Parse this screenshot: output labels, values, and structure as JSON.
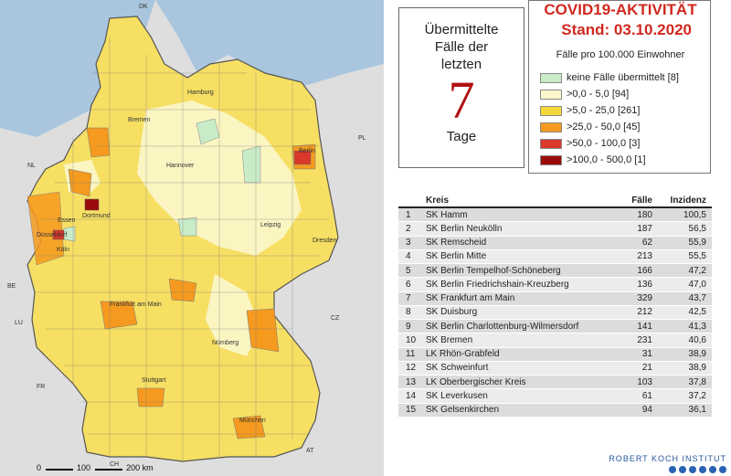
{
  "map": {
    "countries": [
      "DK",
      "NL",
      "BE",
      "LU",
      "FR",
      "PL",
      "CZ",
      "AT",
      "CH"
    ],
    "cities": [
      "Hamburg",
      "Bremen",
      "Berlin",
      "Hannover",
      "Essen",
      "Dortmund",
      "Düsseldorf",
      "Köln",
      "Leipzig",
      "Dresden",
      "Frankfurt am Main",
      "Nürnberg",
      "Stuttgart",
      "München"
    ],
    "scale": {
      "zero": "0",
      "mid": "100",
      "end": "200 km"
    }
  },
  "days_box": {
    "line1": "Übermittelte",
    "line2": "Fälle der",
    "line3": "letzten",
    "number": "7",
    "line4": "Tage"
  },
  "legend": {
    "title": "COVID19-AKTIVITÄT",
    "date": "Stand: 03.10.2020",
    "subtitle": "Fälle pro 100.000 Einwohner",
    "items": [
      {
        "label": "keine Fälle übermittelt [8]",
        "color": "#c8ecc8"
      },
      {
        "label": ">0,0 - 5,0 [94]",
        "color": "#fdf8cc"
      },
      {
        "label": ">5,0 - 25,0 [261]",
        "color": "#f5d83a"
      },
      {
        "label": ">25,0 - 50,0 [45]",
        "color": "#f59a1e"
      },
      {
        "label": ">50,0 - 100,0 [3]",
        "color": "#d9382a"
      },
      {
        "label": ">100,0 - 500,0 [1]",
        "color": "#9b0b0b"
      }
    ]
  },
  "table": {
    "headers": {
      "kreis": "Kreis",
      "faelle": "Fälle",
      "inzidenz": "Inzidenz"
    },
    "rows": [
      {
        "rank": "1",
        "kreis": "SK Hamm",
        "faelle": "180",
        "inzidenz": "100,5"
      },
      {
        "rank": "2",
        "kreis": "SK Berlin Neukölln",
        "faelle": "187",
        "inzidenz": "56,5"
      },
      {
        "rank": "3",
        "kreis": "SK Remscheid",
        "faelle": "62",
        "inzidenz": "55,9"
      },
      {
        "rank": "4",
        "kreis": "SK Berlin Mitte",
        "faelle": "213",
        "inzidenz": "55,5"
      },
      {
        "rank": "5",
        "kreis": "SK Berlin Tempelhof-Schöneberg",
        "faelle": "166",
        "inzidenz": "47,2"
      },
      {
        "rank": "6",
        "kreis": "SK Berlin Friedrichshain-Kreuzberg",
        "faelle": "136",
        "inzidenz": "47,0"
      },
      {
        "rank": "7",
        "kreis": "SK Frankfurt am Main",
        "faelle": "329",
        "inzidenz": "43,7"
      },
      {
        "rank": "8",
        "kreis": "SK Duisburg",
        "faelle": "212",
        "inzidenz": "42,5"
      },
      {
        "rank": "9",
        "kreis": "SK Berlin Charlottenburg-Wilmersdorf",
        "faelle": "141",
        "inzidenz": "41,3"
      },
      {
        "rank": "10",
        "kreis": "SK Bremen",
        "faelle": "231",
        "inzidenz": "40,6"
      },
      {
        "rank": "11",
        "kreis": "LK Rhön-Grabfeld",
        "faelle": "31",
        "inzidenz": "38,9"
      },
      {
        "rank": "12",
        "kreis": "SK Schweinfurt",
        "faelle": "21",
        "inzidenz": "38,9"
      },
      {
        "rank": "13",
        "kreis": "LK Oberbergischer Kreis",
        "faelle": "103",
        "inzidenz": "37,8"
      },
      {
        "rank": "14",
        "kreis": "SK Leverkusen",
        "faelle": "61",
        "inzidenz": "37,2"
      },
      {
        "rank": "15",
        "kreis": "SK Gelsenkirchen",
        "faelle": "94",
        "inzidenz": "36,1"
      }
    ]
  },
  "logo": {
    "text": "ROBERT KOCH INSTITUT"
  }
}
